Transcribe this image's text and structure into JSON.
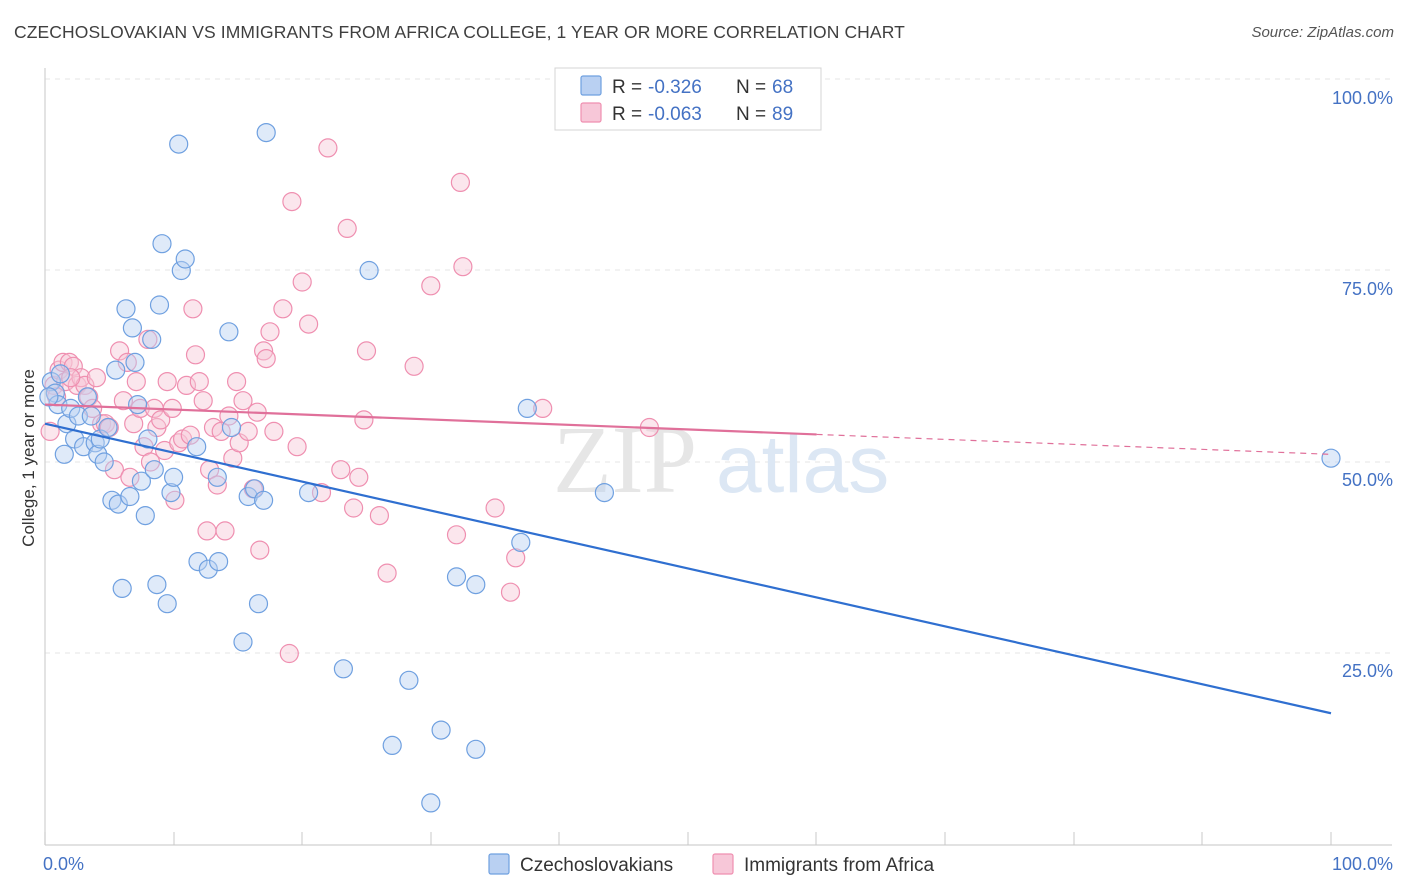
{
  "header": {
    "title": "CZECHOSLOVAKIAN VS IMMIGRANTS FROM AFRICA COLLEGE, 1 YEAR OR MORE CORRELATION CHART",
    "source": "Source: ZipAtlas.com"
  },
  "watermark": {
    "zip": "ZIP",
    "atlas": "atlas"
  },
  "legend_box": {
    "r_label": "R =",
    "n_label": "N =",
    "rows": [
      {
        "r": "-0.326",
        "n": "68"
      },
      {
        "r": "-0.063",
        "n": "89"
      }
    ]
  },
  "bottom_legend": {
    "items": [
      {
        "label": "Czechoslovakians"
      },
      {
        "label": "Immigrants from Africa"
      }
    ]
  },
  "chart_data": {
    "type": "scatter",
    "title": "CZECHOSLOVAKIAN VS IMMIGRANTS FROM AFRICA COLLEGE, 1 YEAR OR MORE CORRELATION CHART",
    "xlabel": "",
    "ylabel": "College, 1 year or more",
    "xlim": [
      0,
      100
    ],
    "ylim": [
      0,
      100
    ],
    "x_tick_labels": [
      {
        "value": 0,
        "label": "0.0%"
      },
      {
        "value": 100,
        "label": "100.0%"
      }
    ],
    "y_tick_labels": [
      {
        "value": 25,
        "label": "25.0%"
      },
      {
        "value": 50,
        "label": "50.0%"
      },
      {
        "value": 75,
        "label": "75.0%"
      },
      {
        "value": 100,
        "label": "100.0%"
      }
    ],
    "grid": true,
    "legend_position": "top-center",
    "series": [
      {
        "name": "Czechoslovakians",
        "color": "#6fa0e0",
        "fill": "#b9d0f2",
        "line_color": "#2f6fd0",
        "trend": {
          "x": [
            0,
            100
          ],
          "y": [
            55.0,
            17.2
          ],
          "dashed_from": null
        },
        "points": [
          [
            0.5,
            60.5
          ],
          [
            0.8,
            59.0
          ],
          [
            1.0,
            57.5
          ],
          [
            1.2,
            61.5
          ],
          [
            1.5,
            51.0
          ],
          [
            1.7,
            55.0
          ],
          [
            2.0,
            57.0
          ],
          [
            2.3,
            53.0
          ],
          [
            2.6,
            56.0
          ],
          [
            3.0,
            52.0
          ],
          [
            3.3,
            58.5
          ],
          [
            3.6,
            56.0
          ],
          [
            3.9,
            52.5
          ],
          [
            4.1,
            51.0
          ],
          [
            4.3,
            53.0
          ],
          [
            4.6,
            50.0
          ],
          [
            4.9,
            54.5
          ],
          [
            5.2,
            45.0
          ],
          [
            5.5,
            62.0
          ],
          [
            5.7,
            44.5
          ],
          [
            6.3,
            70.0
          ],
          [
            6.6,
            45.5
          ],
          [
            6.8,
            67.5
          ],
          [
            7.0,
            63.0
          ],
          [
            7.2,
            57.5
          ],
          [
            7.5,
            47.5
          ],
          [
            7.8,
            43.0
          ],
          [
            8.0,
            53.0
          ],
          [
            8.3,
            66.0
          ],
          [
            8.5,
            49.0
          ],
          [
            8.7,
            34.0
          ],
          [
            8.9,
            70.5
          ],
          [
            9.1,
            78.5
          ],
          [
            9.5,
            31.5
          ],
          [
            9.8,
            46.0
          ],
          [
            10.0,
            48.0
          ],
          [
            10.4,
            91.5
          ],
          [
            10.6,
            75.0
          ],
          [
            10.9,
            76.5
          ],
          [
            11.8,
            52.0
          ],
          [
            11.9,
            37.0
          ],
          [
            12.7,
            36.0
          ],
          [
            13.4,
            48.0
          ],
          [
            13.5,
            37.0
          ],
          [
            14.3,
            67.0
          ],
          [
            14.5,
            54.5
          ],
          [
            15.4,
            26.5
          ],
          [
            15.8,
            45.5
          ],
          [
            16.3,
            46.5
          ],
          [
            16.6,
            31.5
          ],
          [
            17.0,
            45.0
          ],
          [
            17.2,
            93.0
          ],
          [
            20.5,
            46.0
          ],
          [
            23.2,
            23.0
          ],
          [
            25.2,
            75.0
          ],
          [
            27.0,
            13.0
          ],
          [
            28.3,
            21.5
          ],
          [
            30.0,
            5.5
          ],
          [
            30.8,
            15.0
          ],
          [
            32.0,
            35.0
          ],
          [
            33.5,
            12.5
          ],
          [
            33.5,
            34.0
          ],
          [
            37.0,
            39.5
          ],
          [
            37.5,
            57.0
          ],
          [
            43.5,
            46.0
          ],
          [
            100.0,
            50.5
          ],
          [
            0.3,
            58.5
          ],
          [
            6.0,
            33.5
          ]
        ]
      },
      {
        "name": "Immigrants from Africa",
        "color": "#ef8fb0",
        "fill": "#f7c7d8",
        "line_color": "#e0709a",
        "trend": {
          "x": [
            0,
            100
          ],
          "y": [
            57.5,
            51.0
          ],
          "dashed_from": 60
        },
        "points": [
          [
            0.4,
            54.0
          ],
          [
            0.7,
            60.0
          ],
          [
            0.9,
            58.5
          ],
          [
            1.1,
            62.0
          ],
          [
            1.4,
            63.0
          ],
          [
            1.6,
            60.5
          ],
          [
            1.9,
            63.0
          ],
          [
            2.2,
            62.5
          ],
          [
            2.5,
            60.0
          ],
          [
            2.8,
            61.0
          ],
          [
            3.1,
            60.0
          ],
          [
            3.4,
            58.5
          ],
          [
            3.7,
            57.0
          ],
          [
            4.0,
            61.0
          ],
          [
            4.4,
            55.0
          ],
          [
            4.7,
            55.0
          ],
          [
            5.0,
            54.5
          ],
          [
            5.4,
            49.0
          ],
          [
            5.8,
            64.5
          ],
          [
            6.1,
            58.0
          ],
          [
            6.4,
            63.0
          ],
          [
            6.6,
            48.0
          ],
          [
            6.9,
            55.0
          ],
          [
            7.1,
            60.5
          ],
          [
            7.4,
            57.0
          ],
          [
            7.7,
            52.0
          ],
          [
            8.0,
            66.0
          ],
          [
            8.2,
            50.0
          ],
          [
            8.5,
            57.0
          ],
          [
            8.7,
            54.5
          ],
          [
            9.0,
            55.5
          ],
          [
            9.3,
            51.5
          ],
          [
            9.5,
            60.5
          ],
          [
            9.9,
            57.0
          ],
          [
            10.1,
            45.0
          ],
          [
            10.4,
            52.5
          ],
          [
            10.7,
            53.0
          ],
          [
            11.0,
            60.0
          ],
          [
            11.3,
            53.5
          ],
          [
            11.7,
            64.0
          ],
          [
            12.0,
            60.5
          ],
          [
            12.3,
            58.0
          ],
          [
            12.6,
            41.0
          ],
          [
            12.8,
            49.0
          ],
          [
            13.1,
            54.5
          ],
          [
            13.4,
            47.0
          ],
          [
            13.7,
            54.0
          ],
          [
            14.0,
            41.0
          ],
          [
            14.3,
            56.0
          ],
          [
            14.6,
            50.5
          ],
          [
            14.9,
            60.5
          ],
          [
            15.1,
            52.5
          ],
          [
            15.4,
            58.0
          ],
          [
            15.8,
            54.0
          ],
          [
            16.2,
            46.5
          ],
          [
            16.5,
            56.5
          ],
          [
            16.7,
            38.5
          ],
          [
            17.0,
            64.5
          ],
          [
            17.2,
            63.5
          ],
          [
            17.5,
            67.0
          ],
          [
            17.8,
            54.0
          ],
          [
            18.5,
            70.0
          ],
          [
            19.2,
            84.0
          ],
          [
            19.6,
            52.0
          ],
          [
            20.0,
            73.5
          ],
          [
            20.5,
            68.0
          ],
          [
            21.5,
            46.0
          ],
          [
            22.0,
            91.0
          ],
          [
            23.0,
            49.0
          ],
          [
            23.5,
            80.5
          ],
          [
            24.0,
            44.0
          ],
          [
            24.4,
            48.0
          ],
          [
            24.8,
            55.5
          ],
          [
            25.0,
            64.5
          ],
          [
            26.0,
            43.0
          ],
          [
            26.6,
            35.5
          ],
          [
            28.7,
            62.5
          ],
          [
            30.0,
            73.0
          ],
          [
            32.0,
            40.5
          ],
          [
            32.3,
            86.5
          ],
          [
            32.5,
            75.5
          ],
          [
            35.0,
            44.0
          ],
          [
            36.2,
            33.0
          ],
          [
            36.6,
            37.5
          ],
          [
            38.7,
            57.0
          ],
          [
            47.0,
            54.5
          ],
          [
            19.0,
            25.0
          ],
          [
            11.5,
            70.0
          ],
          [
            2.0,
            61.0
          ]
        ]
      }
    ]
  }
}
